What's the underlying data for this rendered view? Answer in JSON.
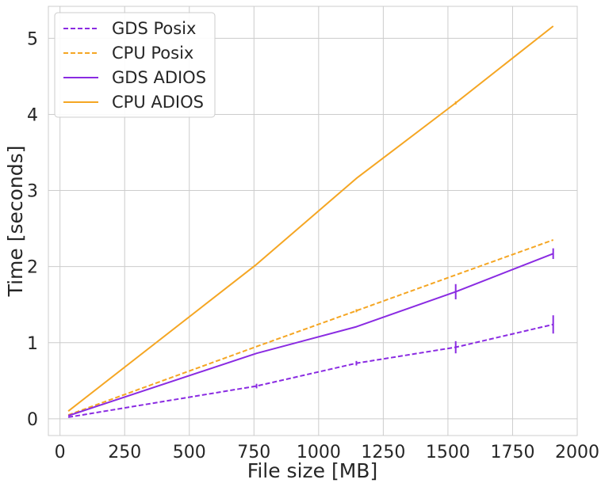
{
  "chart_data": {
    "type": "line",
    "xlabel": "File size [MB]",
    "ylabel": "Time [seconds]",
    "xlim": [
      -45,
      2000
    ],
    "ylim": [
      -0.22,
      5.42
    ],
    "xticks": [
      0,
      250,
      500,
      750,
      1000,
      1250,
      1500,
      1750,
      2000
    ],
    "xtick_labels": [
      "0",
      "250",
      "500",
      "750",
      "1000",
      "1250",
      "1500",
      "1750",
      "2000"
    ],
    "yticks": [
      0,
      1,
      2,
      3,
      4,
      5
    ],
    "ytick_labels": [
      "0",
      "1",
      "2",
      "3",
      "4",
      "5"
    ],
    "grid": true,
    "legend_position": "top-left",
    "series": [
      {
        "name": "GDS Posix",
        "color": "#8a2be2",
        "dash": "dashed",
        "x": [
          32,
          760,
          1146,
          1530,
          1907
        ],
        "y": [
          0.02,
          0.43,
          0.73,
          0.94,
          1.24
        ],
        "err": [
          0.0,
          0.03,
          0.03,
          0.08,
          0.12
        ]
      },
      {
        "name": "CPU Posix",
        "color": "#f5a623",
        "dash": "dashed",
        "x": [
          32,
          760,
          1146,
          1530,
          1907
        ],
        "y": [
          0.05,
          0.95,
          1.42,
          1.89,
          2.35
        ],
        "err": [
          0.0,
          0.0,
          0.02,
          0.0,
          0.0
        ]
      },
      {
        "name": "GDS ADIOS",
        "color": "#8a2be2",
        "dash": "solid",
        "x": [
          32,
          760,
          1146,
          1530,
          1907
        ],
        "y": [
          0.04,
          0.86,
          1.21,
          1.67,
          2.17
        ],
        "err": [
          0.0,
          0.0,
          0.0,
          0.1,
          0.07
        ]
      },
      {
        "name": "CPU ADIOS",
        "color": "#f5a623",
        "dash": "solid",
        "x": [
          32,
          760,
          1146,
          1530,
          1907
        ],
        "y": [
          0.1,
          2.03,
          3.16,
          4.15,
          5.16
        ],
        "err": [
          0.0,
          0.0,
          0.0,
          0.02,
          0.0
        ]
      }
    ]
  }
}
